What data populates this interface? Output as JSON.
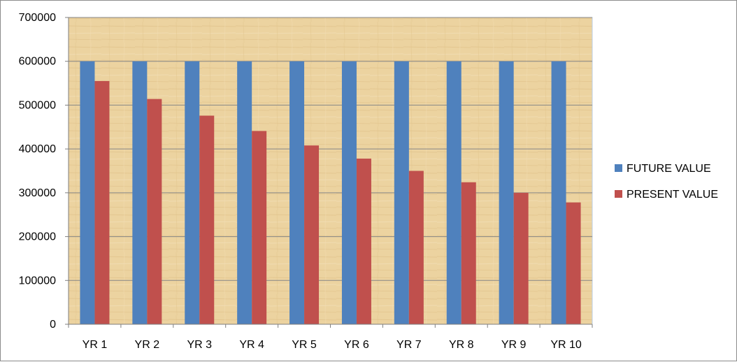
{
  "chart_data": {
    "type": "bar",
    "title": "",
    "xlabel": "",
    "ylabel": "",
    "categories": [
      "YR 1",
      "YR 2",
      "YR 3",
      "YR 4",
      "YR 5",
      "YR 6",
      "YR 7",
      "YR 8",
      "YR 9",
      "YR 10"
    ],
    "series": [
      {
        "name": "FUTURE VALUE",
        "color": "#4f81bd",
        "values": [
          600000,
          600000,
          600000,
          600000,
          600000,
          600000,
          600000,
          600000,
          600000,
          600000
        ]
      },
      {
        "name": "PRESENT VALUE",
        "color": "#c0504d",
        "values": [
          555000,
          514000,
          476000,
          441000,
          408000,
          378000,
          350000,
          324000,
          300000,
          278000
        ]
      }
    ],
    "ylim": [
      0,
      700000
    ],
    "yticks": [
      "0",
      "100000",
      "200000",
      "300000",
      "400000",
      "500000",
      "600000",
      "700000"
    ],
    "grid": true,
    "legend_position": "right",
    "plot_background": "#ecd5a3"
  }
}
